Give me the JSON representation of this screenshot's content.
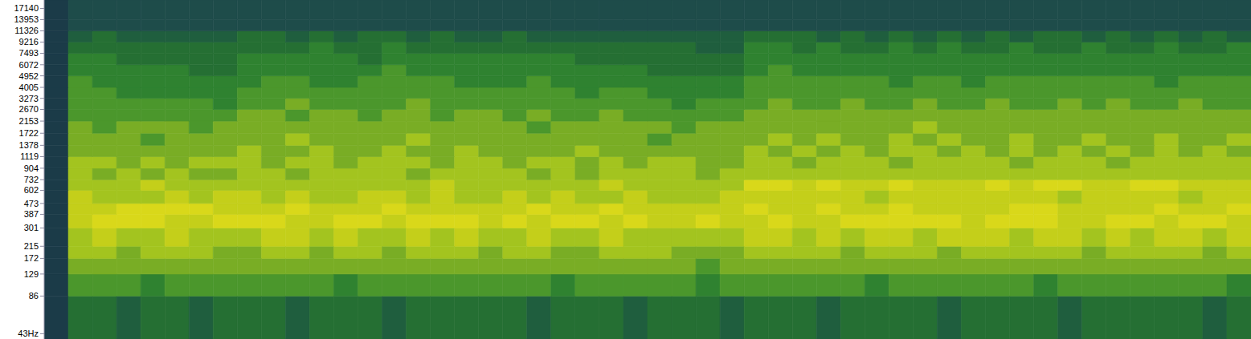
{
  "chart_data": {
    "type": "heatmap",
    "log": "y",
    "tick_labels": "y",
    "xlim": [
      0,
      50
    ],
    "ylim": [
      39,
      20000
    ],
    "yticks": [
      17140,
      13953,
      11326,
      9216,
      7493,
      6072,
      4952,
      4005,
      3273,
      2670,
      2153,
      1722,
      1378,
      1119,
      904,
      732,
      602,
      473,
      387,
      301,
      215,
      172,
      129,
      86,
      {
        "value": 43,
        "label": "43Hz"
      }
    ],
    "zlim": [
      0,
      9
    ],
    "x_bins": [
      0,
      1,
      2,
      3,
      4,
      5,
      6,
      7,
      8,
      9,
      10,
      11,
      12,
      13,
      14,
      15,
      16,
      17,
      18,
      19,
      20,
      21,
      22,
      23,
      24,
      25,
      26,
      27,
      28,
      29,
      30,
      31,
      32,
      33,
      34,
      35,
      36,
      37,
      38,
      39,
      40,
      41,
      42,
      43,
      44,
      45,
      46,
      47,
      48,
      49,
      50
    ],
    "y_bins": [
      39,
      86,
      129,
      172,
      215,
      301,
      387,
      473,
      602,
      732,
      904,
      1119,
      1378,
      1722,
      2153,
      2670,
      3273,
      4005,
      4952,
      6072,
      7493,
      9216,
      11326,
      13953,
      20000
    ],
    "cells": [
      [
        0,
        3,
        3,
        2,
        3,
        3,
        2,
        3,
        3,
        3,
        2,
        3,
        3,
        3,
        2,
        3,
        3,
        3,
        3,
        3,
        2,
        3,
        3,
        3,
        2,
        3,
        3,
        3,
        2,
        3,
        3,
        3,
        2,
        3,
        3,
        3,
        3,
        2,
        3,
        3,
        3,
        3,
        2,
        3,
        3,
        3,
        3,
        3,
        2,
        3
      ],
      [
        0,
        5,
        5,
        5,
        4,
        5,
        5,
        5,
        5,
        5,
        5,
        5,
        4,
        5,
        5,
        5,
        5,
        5,
        5,
        5,
        5,
        4,
        5,
        5,
        5,
        5,
        5,
        4,
        5,
        5,
        5,
        5,
        5,
        5,
        4,
        5,
        5,
        5,
        5,
        5,
        5,
        4,
        5,
        5,
        5,
        5,
        5,
        5,
        5,
        4
      ],
      [
        0,
        6,
        6,
        6,
        6,
        6,
        6,
        6,
        6,
        6,
        6,
        6,
        6,
        6,
        6,
        6,
        6,
        6,
        6,
        6,
        6,
        6,
        6,
        6,
        6,
        6,
        6,
        5,
        6,
        6,
        6,
        6,
        6,
        6,
        6,
        6,
        6,
        6,
        6,
        6,
        6,
        6,
        6,
        6,
        6,
        6,
        6,
        6,
        6,
        6
      ],
      [
        0,
        7,
        7,
        6,
        7,
        7,
        7,
        6,
        6,
        7,
        7,
        6,
        7,
        7,
        6,
        7,
        7,
        7,
        6,
        7,
        7,
        6,
        6,
        7,
        7,
        7,
        6,
        6,
        6,
        7,
        7,
        7,
        7,
        6,
        7,
        7,
        7,
        6,
        7,
        7,
        7,
        7,
        7,
        6,
        7,
        7,
        7,
        7,
        6,
        7
      ],
      [
        0,
        7,
        8,
        7,
        7,
        8,
        7,
        7,
        7,
        8,
        8,
        7,
        8,
        7,
        7,
        8,
        7,
        8,
        7,
        7,
        8,
        7,
        7,
        8,
        7,
        7,
        7,
        7,
        7,
        8,
        8,
        7,
        8,
        7,
        8,
        8,
        7,
        8,
        8,
        8,
        7,
        8,
        8,
        7,
        8,
        7,
        8,
        8,
        7,
        8
      ],
      [
        0,
        8,
        9,
        9,
        9,
        8,
        8,
        9,
        9,
        9,
        8,
        8,
        9,
        9,
        8,
        9,
        9,
        9,
        8,
        9,
        8,
        9,
        9,
        8,
        9,
        8,
        8,
        9,
        8,
        8,
        9,
        8,
        8,
        9,
        9,
        9,
        9,
        9,
        8,
        9,
        9,
        9,
        8,
        8,
        9,
        9,
        8,
        9,
        9,
        8
      ],
      [
        0,
        8,
        8,
        9,
        9,
        9,
        9,
        8,
        8,
        8,
        9,
        8,
        8,
        8,
        9,
        8,
        8,
        8,
        8,
        8,
        9,
        8,
        8,
        9,
        8,
        8,
        8,
        8,
        8,
        9,
        8,
        8,
        9,
        8,
        8,
        9,
        8,
        8,
        8,
        8,
        9,
        9,
        8,
        8,
        8,
        8,
        9,
        8,
        8,
        9
      ],
      [
        0,
        8,
        7,
        7,
        7,
        8,
        7,
        8,
        8,
        7,
        8,
        7,
        7,
        8,
        8,
        7,
        8,
        7,
        7,
        8,
        7,
        8,
        7,
        7,
        8,
        7,
        7,
        7,
        8,
        8,
        8,
        8,
        8,
        8,
        7,
        8,
        8,
        8,
        8,
        8,
        8,
        8,
        7,
        8,
        8,
        8,
        8,
        7,
        8,
        8
      ],
      [
        0,
        7,
        7,
        7,
        8,
        7,
        7,
        7,
        7,
        7,
        7,
        7,
        7,
        7,
        7,
        7,
        8,
        7,
        7,
        7,
        7,
        7,
        7,
        8,
        7,
        7,
        7,
        7,
        7,
        9,
        9,
        8,
        9,
        8,
        8,
        9,
        8,
        8,
        8,
        9,
        8,
        9,
        9,
        8,
        8,
        9,
        9,
        8,
        8,
        8
      ],
      [
        0,
        7,
        6,
        7,
        6,
        7,
        6,
        6,
        7,
        7,
        6,
        7,
        7,
        7,
        7,
        6,
        7,
        7,
        7,
        7,
        6,
        7,
        6,
        7,
        7,
        7,
        7,
        6,
        7,
        7,
        7,
        7,
        7,
        7,
        7,
        7,
        7,
        7,
        7,
        7,
        7,
        7,
        7,
        7,
        7,
        7,
        7,
        7,
        7,
        7
      ],
      [
        0,
        7,
        7,
        6,
        7,
        6,
        7,
        7,
        7,
        6,
        7,
        7,
        6,
        7,
        7,
        7,
        6,
        7,
        7,
        6,
        7,
        7,
        6,
        7,
        6,
        7,
        7,
        6,
        6,
        7,
        7,
        6,
        7,
        7,
        7,
        6,
        7,
        7,
        7,
        7,
        6,
        7,
        7,
        7,
        6,
        7,
        7,
        7,
        7,
        7
      ],
      [
        0,
        6,
        6,
        6,
        6,
        6,
        6,
        6,
        7,
        6,
        6,
        7,
        6,
        6,
        7,
        6,
        6,
        7,
        6,
        6,
        6,
        6,
        7,
        6,
        6,
        6,
        6,
        6,
        6,
        7,
        6,
        7,
        6,
        7,
        6,
        7,
        7,
        6,
        7,
        6,
        7,
        6,
        7,
        6,
        7,
        6,
        7,
        6,
        7,
        6
      ],
      [
        0,
        6,
        6,
        6,
        5,
        6,
        6,
        6,
        6,
        6,
        7,
        6,
        6,
        6,
        6,
        7,
        6,
        6,
        6,
        6,
        6,
        6,
        6,
        6,
        6,
        5,
        6,
        6,
        6,
        6,
        7,
        6,
        7,
        6,
        6,
        7,
        6,
        7,
        6,
        6,
        7,
        6,
        6,
        7,
        6,
        6,
        7,
        6,
        6,
        7
      ],
      [
        0,
        6,
        5,
        6,
        6,
        6,
        5,
        6,
        6,
        6,
        6,
        6,
        6,
        6,
        6,
        6,
        6,
        6,
        6,
        6,
        5,
        6,
        6,
        6,
        6,
        6,
        5,
        6,
        6,
        6,
        6,
        6,
        6,
        6,
        6,
        6,
        7,
        6,
        6,
        6,
        6,
        6,
        6,
        6,
        6,
        6,
        6,
        6,
        6,
        6
      ],
      [
        0,
        5,
        5,
        5,
        5,
        5,
        5,
        5,
        6,
        6,
        5,
        6,
        6,
        5,
        6,
        6,
        5,
        6,
        6,
        5,
        6,
        5,
        5,
        6,
        5,
        5,
        5,
        5,
        5,
        6,
        6,
        6,
        6,
        6,
        6,
        6,
        6,
        6,
        6,
        6,
        6,
        6,
        6,
        6,
        6,
        6,
        6,
        6,
        6,
        6
      ],
      [
        0,
        5,
        5,
        5,
        5,
        5,
        5,
        4,
        5,
        5,
        6,
        5,
        5,
        5,
        5,
        6,
        5,
        5,
        5,
        5,
        5,
        5,
        5,
        5,
        5,
        5,
        4,
        5,
        5,
        5,
        6,
        5,
        5,
        6,
        5,
        5,
        6,
        5,
        5,
        6,
        5,
        5,
        6,
        5,
        6,
        5,
        5,
        6,
        5,
        5
      ],
      [
        0,
        5,
        5,
        4,
        4,
        4,
        4,
        4,
        5,
        5,
        5,
        5,
        5,
        5,
        5,
        5,
        5,
        5,
        5,
        5,
        5,
        5,
        4,
        5,
        5,
        4,
        4,
        4,
        4,
        5,
        5,
        5,
        5,
        5,
        5,
        5,
        5,
        5,
        5,
        5,
        5,
        5,
        5,
        5,
        5,
        5,
        5,
        5,
        5,
        5
      ],
      [
        0,
        5,
        4,
        4,
        4,
        4,
        4,
        4,
        4,
        5,
        5,
        4,
        4,
        5,
        5,
        5,
        5,
        4,
        4,
        4,
        5,
        4,
        4,
        4,
        4,
        4,
        4,
        4,
        4,
        5,
        5,
        5,
        5,
        5,
        5,
        4,
        5,
        5,
        4,
        5,
        5,
        5,
        5,
        5,
        5,
        5,
        4,
        5,
        5,
        5
      ],
      [
        0,
        4,
        4,
        4,
        4,
        4,
        3,
        3,
        4,
        4,
        4,
        4,
        4,
        4,
        5,
        4,
        4,
        4,
        4,
        4,
        4,
        4,
        4,
        4,
        4,
        3,
        3,
        3,
        3,
        4,
        5,
        4,
        4,
        4,
        4,
        4,
        4,
        4,
        4,
        4,
        4,
        4,
        4,
        4,
        4,
        4,
        4,
        4,
        4,
        4
      ],
      [
        0,
        4,
        4,
        3,
        3,
        3,
        3,
        3,
        4,
        4,
        4,
        4,
        4,
        3,
        4,
        4,
        4,
        4,
        4,
        4,
        4,
        4,
        3,
        3,
        3,
        3,
        3,
        3,
        3,
        4,
        4,
        4,
        4,
        4,
        4,
        4,
        4,
        4,
        4,
        4,
        4,
        4,
        4,
        4,
        4,
        4,
        4,
        4,
        4,
        4
      ],
      [
        0,
        3,
        3,
        3,
        3,
        3,
        3,
        3,
        3,
        3,
        3,
        4,
        3,
        3,
        4,
        3,
        3,
        3,
        3,
        3,
        3,
        3,
        3,
        3,
        3,
        3,
        3,
        2,
        2,
        4,
        4,
        3,
        4,
        3,
        3,
        4,
        3,
        4,
        3,
        3,
        4,
        3,
        3,
        4,
        3,
        3,
        4,
        3,
        3,
        4
      ],
      [
        0,
        2,
        3,
        2,
        2,
        2,
        2,
        2,
        3,
        3,
        2,
        3,
        2,
        3,
        3,
        2,
        3,
        2,
        2,
        3,
        2,
        2,
        2,
        2,
        2,
        2,
        2,
        2,
        2,
        3,
        3,
        3,
        2,
        3,
        2,
        3,
        2,
        3,
        2,
        3,
        2,
        3,
        3,
        2,
        3,
        2,
        3,
        2,
        3,
        2
      ],
      [
        0,
        1,
        1,
        1,
        1,
        1,
        1,
        1,
        1,
        1,
        1,
        1,
        1,
        1,
        1,
        1,
        1,
        1,
        1,
        1,
        1,
        1,
        1,
        1,
        1,
        1,
        1,
        1,
        1,
        1,
        1,
        1,
        1,
        1,
        1,
        1,
        1,
        1,
        1,
        1,
        1,
        1,
        1,
        1,
        1,
        1,
        1,
        1,
        1,
        1
      ],
      [
        0,
        1,
        1,
        1,
        1,
        1,
        1,
        1,
        1,
        1,
        1,
        1,
        1,
        1,
        1,
        1,
        1,
        1,
        1,
        1,
        1,
        1,
        1,
        1,
        1,
        1,
        1,
        1,
        1,
        1,
        1,
        1,
        1,
        1,
        1,
        1,
        1,
        1,
        1,
        1,
        1,
        1,
        1,
        1,
        1,
        1,
        1,
        1,
        1,
        1
      ]
    ]
  }
}
